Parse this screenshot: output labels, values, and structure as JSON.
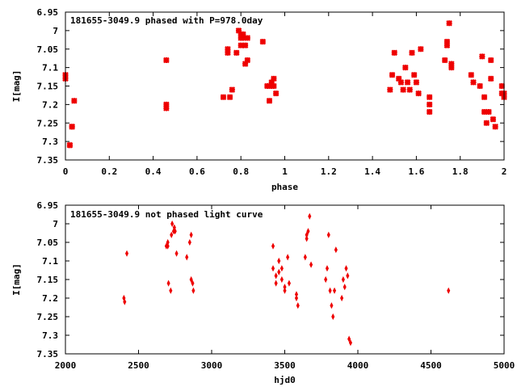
{
  "chart_data": [
    {
      "type": "scatter",
      "title": "181655-3049.9 phased with P=978.0day",
      "xlabel": "phase",
      "ylabel": "I[mag]",
      "xlim": [
        0,
        2
      ],
      "ylim": [
        6.95,
        7.35
      ],
      "y_inverted": true,
      "x_ticks": [
        "0",
        "0.2",
        "0.4",
        "0.6",
        "0.8",
        "1",
        "1.2",
        "1.4",
        "1.6",
        "1.8",
        "2"
      ],
      "y_ticks": [
        "6.95",
        "7",
        "7.05",
        "7.1",
        "7.15",
        "7.2",
        "7.25",
        "7.3",
        "7.35"
      ],
      "color": "#ee0000",
      "series": [
        {
          "x": [
            0.0,
            0.0,
            0.02,
            0.02,
            0.03,
            0.03,
            0.04,
            0.46,
            0.46,
            0.46,
            0.72,
            0.74,
            0.74,
            0.75,
            0.76,
            0.78,
            0.79,
            0.8,
            0.8,
            0.8,
            0.81,
            0.81,
            0.82,
            0.82,
            0.83,
            0.83,
            0.9,
            0.92,
            0.93,
            0.93,
            0.94,
            0.94,
            0.95,
            0.95,
            0.96,
            1.48,
            1.49,
            1.5,
            1.52,
            1.53,
            1.54,
            1.55,
            1.56,
            1.57,
            1.58,
            1.59,
            1.6,
            1.61,
            1.62,
            1.66,
            1.66,
            1.66,
            1.73,
            1.74,
            1.74,
            1.75,
            1.76,
            1.76,
            1.85,
            1.86,
            1.89,
            1.9,
            1.91,
            1.91,
            1.92,
            1.93,
            1.94,
            1.94,
            1.95,
            1.96,
            1.99,
            1.99,
            2.0,
            2.0
          ],
          "y": [
            7.12,
            7.13,
            7.31,
            7.31,
            7.26,
            7.26,
            7.19,
            7.08,
            7.2,
            7.21,
            7.18,
            7.05,
            7.06,
            7.18,
            7.16,
            7.06,
            7.0,
            7.01,
            7.02,
            7.04,
            7.01,
            7.02,
            7.04,
            7.09,
            7.02,
            7.08,
            7.03,
            7.15,
            7.15,
            7.19,
            7.14,
            7.15,
            7.13,
            7.15,
            7.17,
            7.16,
            7.12,
            7.06,
            7.13,
            7.14,
            7.16,
            7.1,
            7.14,
            7.16,
            7.06,
            7.12,
            7.14,
            7.17,
            7.05,
            7.18,
            7.2,
            7.22,
            7.08,
            7.03,
            7.04,
            6.98,
            7.09,
            7.1,
            7.12,
            7.14,
            7.15,
            7.07,
            7.18,
            7.22,
            7.25,
            7.22,
            7.13,
            7.08,
            7.24,
            7.26,
            7.15,
            7.17,
            7.17,
            7.18
          ]
        }
      ]
    },
    {
      "type": "scatter",
      "title": "181655-3049.9 not phased light curve",
      "xlabel": "hjd0",
      "ylabel": "I[mag]",
      "xlim": [
        2000,
        5000
      ],
      "ylim": [
        6.95,
        7.35
      ],
      "y_inverted": true,
      "x_ticks": [
        "2000",
        "2500",
        "3000",
        "3500",
        "4000",
        "4500",
        "5000"
      ],
      "y_ticks": [
        "6.95",
        "7",
        "7.05",
        "7.1",
        "7.15",
        "7.2",
        "7.25",
        "7.3",
        "7.35"
      ],
      "color": "#ee0000",
      "series": [
        {
          "x": [
            2400,
            2405,
            2420,
            2690,
            2700,
            2700,
            2705,
            2720,
            2725,
            2730,
            2740,
            2745,
            2750,
            2760,
            2830,
            2850,
            2860,
            2860,
            2870,
            2875,
            3420,
            3420,
            3440,
            3440,
            3460,
            3460,
            3480,
            3480,
            3500,
            3500,
            3520,
            3530,
            3580,
            3580,
            3590,
            3640,
            3650,
            3650,
            3660,
            3670,
            3680,
            3780,
            3790,
            3800,
            3810,
            3820,
            3830,
            3840,
            3850,
            3890,
            3900,
            3910,
            3920,
            3930,
            3940,
            3950,
            4620
          ],
          "y": [
            7.2,
            7.21,
            7.08,
            7.06,
            7.05,
            7.06,
            7.16,
            7.18,
            7.03,
            7.0,
            7.02,
            7.01,
            7.02,
            7.08,
            7.09,
            7.05,
            7.03,
            7.15,
            7.16,
            7.18,
            7.06,
            7.12,
            7.14,
            7.16,
            7.13,
            7.1,
            7.15,
            7.12,
            7.18,
            7.17,
            7.09,
            7.16,
            7.19,
            7.2,
            7.22,
            7.09,
            7.03,
            7.04,
            7.02,
            6.98,
            7.11,
            7.15,
            7.12,
            7.03,
            7.18,
            7.22,
            7.25,
            7.18,
            7.07,
            7.2,
            7.15,
            7.17,
            7.12,
            7.14,
            7.31,
            7.32,
            7.18
          ]
        }
      ]
    }
  ]
}
